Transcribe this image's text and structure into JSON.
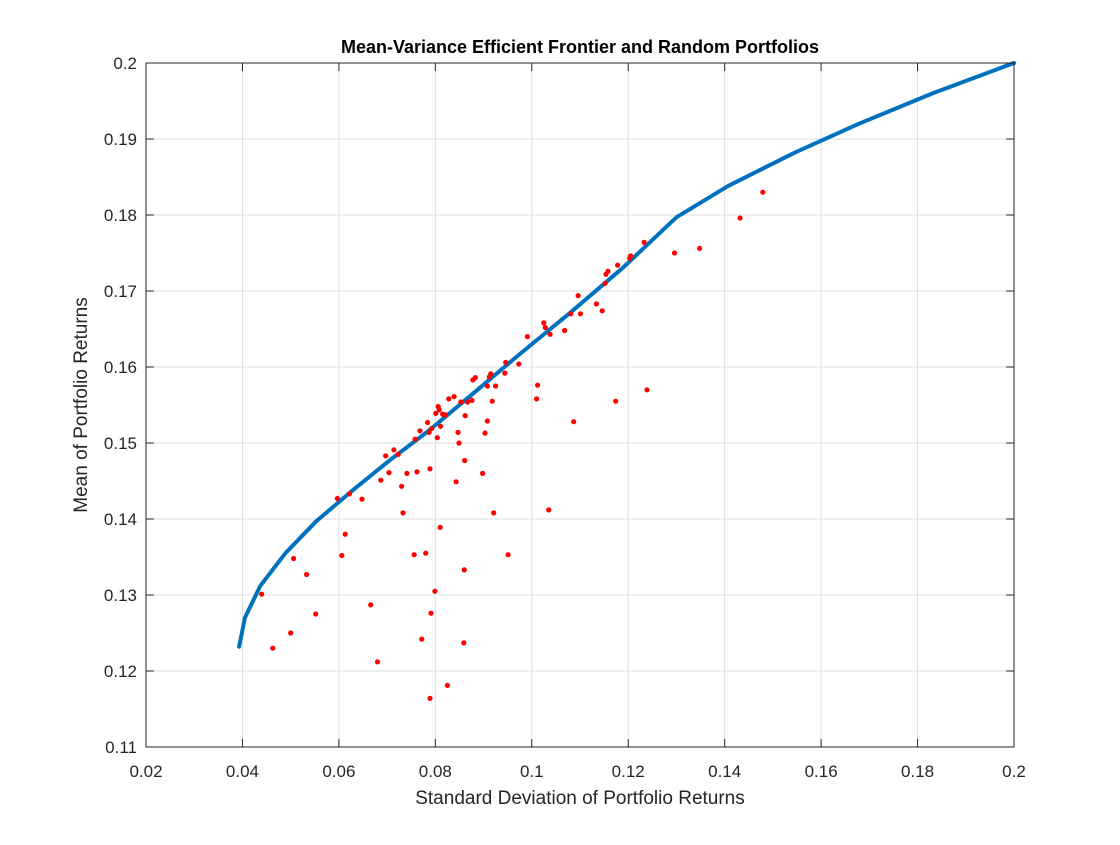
{
  "chart_data": {
    "type": "scatter",
    "title": "Mean-Variance Efficient Frontier and Random Portfolios",
    "xlabel": "Standard Deviation of Portfolio Returns",
    "ylabel": "Mean of Portfolio Returns",
    "xlim": [
      0.02,
      0.2
    ],
    "ylim": [
      0.11,
      0.2
    ],
    "xticks": [
      "0.02",
      "0.04",
      "0.06",
      "0.08",
      "0.1",
      "0.12",
      "0.14",
      "0.16",
      "0.18",
      "0.2"
    ],
    "yticks": [
      "0.11",
      "0.12",
      "0.13",
      "0.14",
      "0.15",
      "0.16",
      "0.17",
      "0.18",
      "0.19",
      "0.2"
    ],
    "grid": true,
    "colors": {
      "frontier": "#0072BD",
      "portfolios": "#FF0000",
      "axes": "#262626",
      "grid": "#DFDFDF"
    },
    "series": [
      {
        "kind": "line",
        "x": [
          0.0393,
          0.0405,
          0.0437,
          0.0489,
          0.0553,
          0.0629,
          0.0707,
          0.0788,
          0.088,
          0.0975,
          0.1077,
          0.1188,
          0.13,
          0.1407,
          0.1545,
          0.1678,
          0.1831,
          0.2
        ],
        "y": [
          0.1232,
          0.127,
          0.1312,
          0.1355,
          0.1397,
          0.1438,
          0.1478,
          0.1517,
          0.1566,
          0.1617,
          0.167,
          0.173,
          0.1797,
          0.1838,
          0.1882,
          0.192,
          0.196,
          0.2
        ]
      },
      {
        "kind": "scatter",
        "points": [
          [
            0.0463,
            0.123
          ],
          [
            0.044,
            0.1301
          ],
          [
            0.05,
            0.125
          ],
          [
            0.0506,
            0.1348
          ],
          [
            0.0533,
            0.1327
          ],
          [
            0.0552,
            0.1275
          ],
          [
            0.0597,
            0.1427
          ],
          [
            0.0606,
            0.1352
          ],
          [
            0.0613,
            0.138
          ],
          [
            0.0622,
            0.1433
          ],
          [
            0.0648,
            0.1426
          ],
          [
            0.0666,
            0.1287
          ],
          [
            0.068,
            0.1212
          ],
          [
            0.0687,
            0.1451
          ],
          [
            0.0697,
            0.1483
          ],
          [
            0.0704,
            0.1461
          ],
          [
            0.0714,
            0.1491
          ],
          [
            0.0723,
            0.1485
          ],
          [
            0.073,
            0.1443
          ],
          [
            0.0733,
            0.1408
          ],
          [
            0.0741,
            0.146
          ],
          [
            0.0756,
            0.1353
          ],
          [
            0.0758,
            0.1505
          ],
          [
            0.0762,
            0.1462
          ],
          [
            0.0768,
            0.1516
          ],
          [
            0.0772,
            0.1242
          ],
          [
            0.078,
            0.1355
          ],
          [
            0.0784,
            0.1527
          ],
          [
            0.0787,
            0.1514
          ],
          [
            0.0789,
            0.1164
          ],
          [
            0.0789,
            0.1466
          ],
          [
            0.0791,
            0.1276
          ],
          [
            0.0792,
            0.1519
          ],
          [
            0.0799,
            0.1305
          ],
          [
            0.0801,
            0.1539
          ],
          [
            0.0804,
            0.1507
          ],
          [
            0.0806,
            0.1548
          ],
          [
            0.0808,
            0.1544
          ],
          [
            0.081,
            0.1389
          ],
          [
            0.0811,
            0.1522
          ],
          [
            0.0815,
            0.1538
          ],
          [
            0.0821,
            0.1537
          ],
          [
            0.0825,
            0.1181
          ],
          [
            0.0828,
            0.1558
          ],
          [
            0.0839,
            0.1561
          ],
          [
            0.0843,
            0.1449
          ],
          [
            0.0847,
            0.1514
          ],
          [
            0.0849,
            0.15
          ],
          [
            0.0853,
            0.1554
          ],
          [
            0.0859,
            0.1237
          ],
          [
            0.086,
            0.1333
          ],
          [
            0.0861,
            0.1477
          ],
          [
            0.0862,
            0.1536
          ],
          [
            0.0867,
            0.1554
          ],
          [
            0.0876,
            0.1556
          ],
          [
            0.0878,
            0.1583
          ],
          [
            0.0883,
            0.1586
          ],
          [
            0.0898,
            0.146
          ],
          [
            0.0903,
            0.1513
          ],
          [
            0.0908,
            0.1529
          ],
          [
            0.0908,
            0.1575
          ],
          [
            0.0912,
            0.1587
          ],
          [
            0.0915,
            0.1591
          ],
          [
            0.0918,
            0.1555
          ],
          [
            0.0921,
            0.1408
          ],
          [
            0.0925,
            0.1575
          ],
          [
            0.0944,
            0.1592
          ],
          [
            0.0946,
            0.1606
          ],
          [
            0.0951,
            0.1353
          ],
          [
            0.0973,
            0.1604
          ],
          [
            0.0991,
            0.164
          ],
          [
            0.101,
            0.1558
          ],
          [
            0.1012,
            0.1576
          ],
          [
            0.1025,
            0.1658
          ],
          [
            0.1028,
            0.1652
          ],
          [
            0.1035,
            0.1412
          ],
          [
            0.1038,
            0.1643
          ],
          [
            0.1068,
            0.1648
          ],
          [
            0.1081,
            0.167
          ],
          [
            0.1087,
            0.1528
          ],
          [
            0.1096,
            0.1694
          ],
          [
            0.1101,
            0.167
          ],
          [
            0.1134,
            0.1683
          ],
          [
            0.1146,
            0.1674
          ],
          [
            0.1152,
            0.171
          ],
          [
            0.1154,
            0.1722
          ],
          [
            0.1158,
            0.1726
          ],
          [
            0.1174,
            0.1555
          ],
          [
            0.1178,
            0.1734
          ],
          [
            0.1203,
            0.1743
          ],
          [
            0.1205,
            0.1746
          ],
          [
            0.1233,
            0.1764
          ],
          [
            0.1239,
            0.157
          ],
          [
            0.1296,
            0.175
          ],
          [
            0.1348,
            0.1756
          ],
          [
            0.1432,
            0.1796
          ],
          [
            0.1479,
            0.183
          ]
        ]
      }
    ]
  }
}
